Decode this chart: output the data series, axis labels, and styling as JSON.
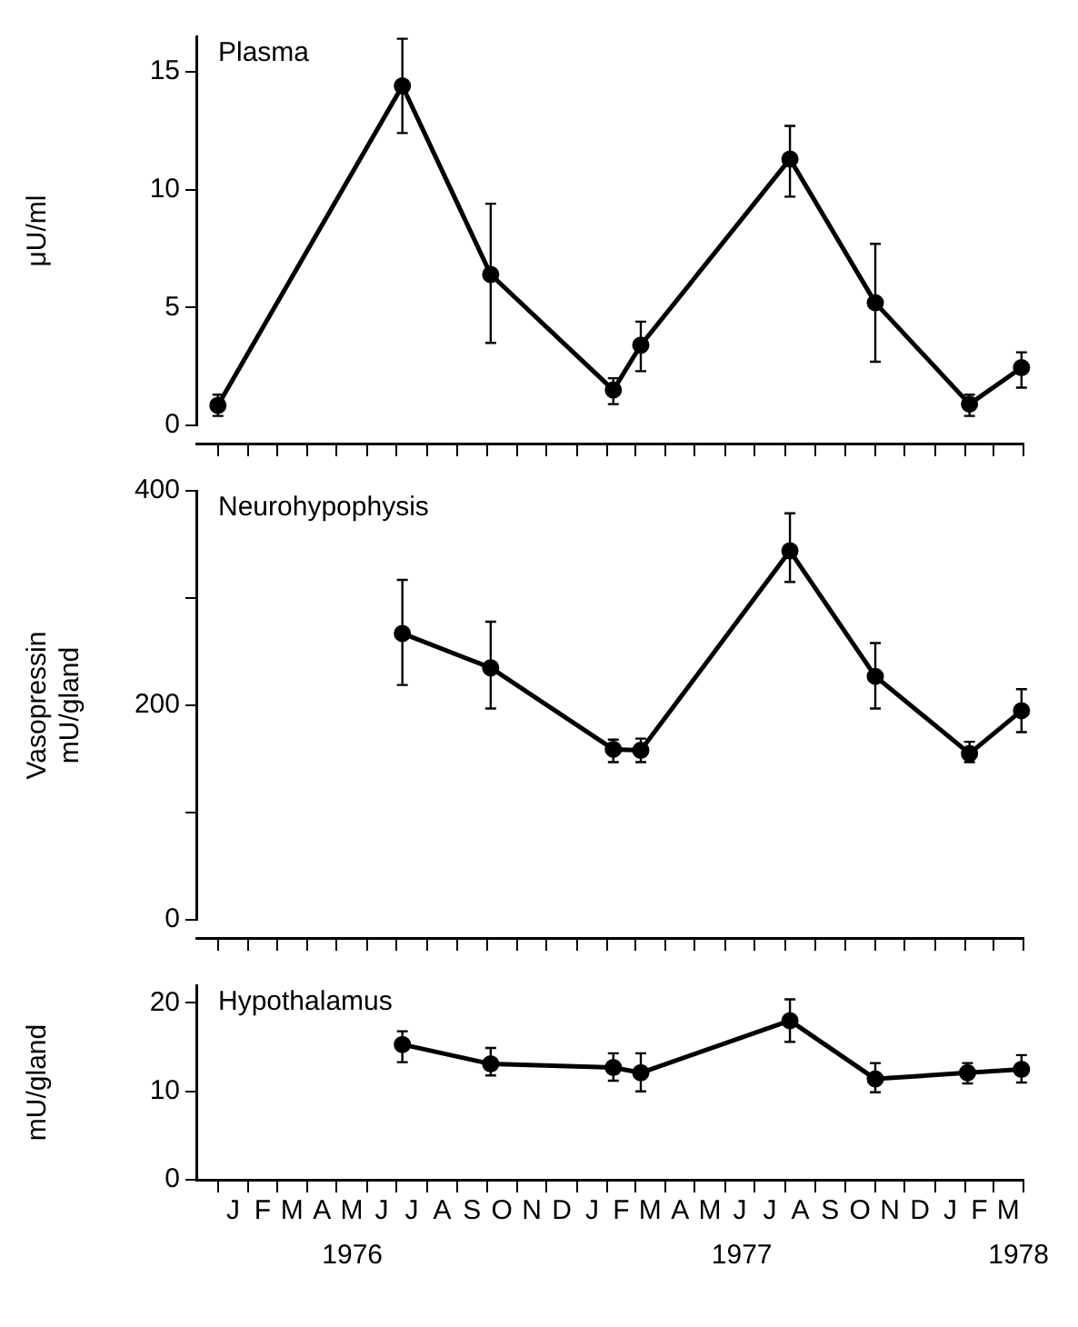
{
  "chart_data": [
    {
      "type": "line",
      "title": "Plasma",
      "ylabel": "μU/ml",
      "x": [
        "1976-01-01",
        "1976-07-07",
        "1976-10-05",
        "1977-02-07",
        "1977-03-07",
        "1977-08-06",
        "1977-11-01",
        "1978-02-05",
        "1978-03-30"
      ],
      "series": [
        {
          "color": "#000000",
          "values": [
            0.85,
            14.4,
            6.4,
            1.5,
            3.4,
            11.3,
            5.2,
            0.9,
            2.45
          ],
          "errors": [
            [
              0.4,
              1.3
            ],
            [
              12.4,
              16.4
            ],
            [
              3.5,
              9.4
            ],
            [
              0.9,
              2.0
            ],
            [
              2.3,
              4.4
            ],
            [
              9.7,
              12.7
            ],
            [
              2.7,
              7.7
            ],
            [
              0.4,
              1.3
            ],
            [
              1.6,
              3.1
            ]
          ]
        }
      ],
      "xlim": [
        "1975-12-10",
        "1978-04-01"
      ],
      "ylim": [
        0,
        16.5
      ],
      "yticks": [
        0,
        5,
        10,
        15
      ],
      "xticks": [
        {
          "value": "1976-01-01",
          "label": null
        },
        {
          "value": "1976-02-01",
          "label": null
        },
        {
          "value": "1976-03-01",
          "label": null
        },
        {
          "value": "1976-04-01",
          "label": null
        },
        {
          "value": "1976-05-01",
          "label": null
        },
        {
          "value": "1976-06-01",
          "label": null
        },
        {
          "value": "1976-07-01",
          "label": null
        },
        {
          "value": "1976-08-01",
          "label": null
        },
        {
          "value": "1976-09-01",
          "label": null
        },
        {
          "value": "1976-10-01",
          "label": null
        },
        {
          "value": "1976-11-01",
          "label": null
        },
        {
          "value": "1976-12-01",
          "label": null
        },
        {
          "value": "1977-01-01",
          "label": null
        },
        {
          "value": "1977-02-01",
          "label": null
        },
        {
          "value": "1977-03-01",
          "label": null
        },
        {
          "value": "1977-04-01",
          "label": null
        },
        {
          "value": "1977-05-01",
          "label": null
        },
        {
          "value": "1977-06-01",
          "label": null
        },
        {
          "value": "1977-07-01",
          "label": null
        },
        {
          "value": "1977-08-01",
          "label": null
        },
        {
          "value": "1977-09-01",
          "label": null
        },
        {
          "value": "1977-10-01",
          "label": null
        },
        {
          "value": "1977-11-01",
          "label": null
        },
        {
          "value": "1977-12-01",
          "label": null
        },
        {
          "value": "1978-01-01",
          "label": null
        },
        {
          "value": "1978-02-01",
          "label": null
        },
        {
          "value": "1978-03-01",
          "label": null
        },
        {
          "value": "1978-04-01",
          "label": null
        }
      ],
      "tick_labels": "y",
      "grid": false,
      "legend": false,
      "marker": "circle",
      "line_style": "solid"
    },
    {
      "type": "line",
      "title": "Neurohypophysis",
      "ylabel": "Vasopressin\nmU/gland",
      "x": [
        "1976-07-07",
        "1976-10-05",
        "1977-02-07",
        "1977-03-07",
        "1977-08-06",
        "1977-11-01",
        "1978-02-05",
        "1978-03-30"
      ],
      "series": [
        {
          "color": "#000000",
          "values": [
            267,
            235,
            159,
            158,
            344,
            227,
            155,
            195
          ],
          "errors": [
            [
              219,
              317
            ],
            [
              197,
              278
            ],
            [
              147,
              168
            ],
            [
              147,
              169
            ],
            [
              315,
              379
            ],
            [
              197,
              258
            ],
            [
              147,
              166
            ],
            [
              175,
              215
            ]
          ]
        }
      ],
      "xlim": [
        "1975-12-10",
        "1978-04-01"
      ],
      "ylim": [
        0,
        400
      ],
      "yticks": [
        0,
        {
          "value": 100,
          "label": null
        },
        200,
        {
          "value": 300,
          "label": null
        },
        400
      ],
      "xticks": [
        {
          "value": "1976-01-01",
          "label": null
        },
        {
          "value": "1976-02-01",
          "label": null
        },
        {
          "value": "1976-03-01",
          "label": null
        },
        {
          "value": "1976-04-01",
          "label": null
        },
        {
          "value": "1976-05-01",
          "label": null
        },
        {
          "value": "1976-06-01",
          "label": null
        },
        {
          "value": "1976-07-01",
          "label": null
        },
        {
          "value": "1976-08-01",
          "label": null
        },
        {
          "value": "1976-09-01",
          "label": null
        },
        {
          "value": "1976-10-01",
          "label": null
        },
        {
          "value": "1976-11-01",
          "label": null
        },
        {
          "value": "1976-12-01",
          "label": null
        },
        {
          "value": "1977-01-01",
          "label": null
        },
        {
          "value": "1977-02-01",
          "label": null
        },
        {
          "value": "1977-03-01",
          "label": null
        },
        {
          "value": "1977-04-01",
          "label": null
        },
        {
          "value": "1977-05-01",
          "label": null
        },
        {
          "value": "1977-06-01",
          "label": null
        },
        {
          "value": "1977-07-01",
          "label": null
        },
        {
          "value": "1977-08-01",
          "label": null
        },
        {
          "value": "1977-09-01",
          "label": null
        },
        {
          "value": "1977-10-01",
          "label": null
        },
        {
          "value": "1977-11-01",
          "label": null
        },
        {
          "value": "1977-12-01",
          "label": null
        },
        {
          "value": "1978-01-01",
          "label": null
        },
        {
          "value": "1978-02-01",
          "label": null
        },
        {
          "value": "1978-03-01",
          "label": null
        },
        {
          "value": "1978-04-01",
          "label": null
        }
      ],
      "tick_labels": "y",
      "grid": false,
      "legend": false,
      "marker": "circle",
      "line_style": "solid"
    },
    {
      "type": "line",
      "title": "Hypothalamus",
      "ylabel": "mU/gland",
      "x": [
        "1976-07-07",
        "1976-10-05",
        "1977-02-07",
        "1977-03-07",
        "1977-08-06",
        "1977-11-01",
        "1978-02-03",
        "1978-03-30"
      ],
      "series": [
        {
          "color": "#000000",
          "values": [
            15.3,
            13.1,
            12.7,
            12.1,
            18.0,
            11.4,
            12.1,
            12.5
          ],
          "errors": [
            [
              13.3,
              16.8
            ],
            [
              11.8,
              14.9
            ],
            [
              11.2,
              14.3
            ],
            [
              10.0,
              14.3
            ],
            [
              15.6,
              20.4
            ],
            [
              9.9,
              13.2
            ],
            [
              10.9,
              13.2
            ],
            [
              11.0,
              14.1
            ]
          ]
        }
      ],
      "xlim": [
        "1975-12-10",
        "1978-04-01"
      ],
      "ylim": [
        0,
        22
      ],
      "yticks": [
        0,
        10,
        20
      ],
      "xticks": [
        {
          "value": "1976-01-01",
          "label": null
        },
        {
          "value": "1976-02-01",
          "label": null
        },
        {
          "value": "1976-03-01",
          "label": null
        },
        {
          "value": "1976-04-01",
          "label": null
        },
        {
          "value": "1976-05-01",
          "label": null
        },
        {
          "value": "1976-06-01",
          "label": null
        },
        {
          "value": "1976-07-01",
          "label": null
        },
        {
          "value": "1976-08-01",
          "label": null
        },
        {
          "value": "1976-09-01",
          "label": null
        },
        {
          "value": "1976-10-01",
          "label": null
        },
        {
          "value": "1976-11-01",
          "label": null
        },
        {
          "value": "1976-12-01",
          "label": null
        },
        {
          "value": "1977-01-01",
          "label": null
        },
        {
          "value": "1977-02-01",
          "label": null
        },
        {
          "value": "1977-03-01",
          "label": null
        },
        {
          "value": "1977-04-01",
          "label": null
        },
        {
          "value": "1977-05-01",
          "label": null
        },
        {
          "value": "1977-06-01",
          "label": null
        },
        {
          "value": "1977-07-01",
          "label": null
        },
        {
          "value": "1977-08-01",
          "label": null
        },
        {
          "value": "1977-09-01",
          "label": null
        },
        {
          "value": "1977-10-01",
          "label": null
        },
        {
          "value": "1977-11-01",
          "label": null
        },
        {
          "value": "1977-12-01",
          "label": null
        },
        {
          "value": "1978-01-01",
          "label": null
        },
        {
          "value": "1978-02-01",
          "label": null
        },
        {
          "value": "1978-03-01",
          "label": null
        },
        {
          "value": "1978-04-01",
          "label": null
        },
        {
          "value": "1976-05-17",
          "label": "1976"
        },
        {
          "value": "1977-06-18",
          "label": "1977"
        },
        {
          "value": "1978-03-27",
          "label": "1978"
        }
      ],
      "annotations": [
        "J",
        "F",
        "M",
        "A",
        "M",
        "J",
        "J",
        "A",
        "S",
        "O",
        "N",
        "D",
        "J",
        "F",
        "M",
        "A",
        "M",
        "J",
        "J",
        "A",
        "S",
        "O",
        "N",
        "D",
        "J",
        "F",
        "M"
      ],
      "grid": false,
      "legend": false,
      "marker": "circle",
      "line_style": "solid"
    }
  ]
}
